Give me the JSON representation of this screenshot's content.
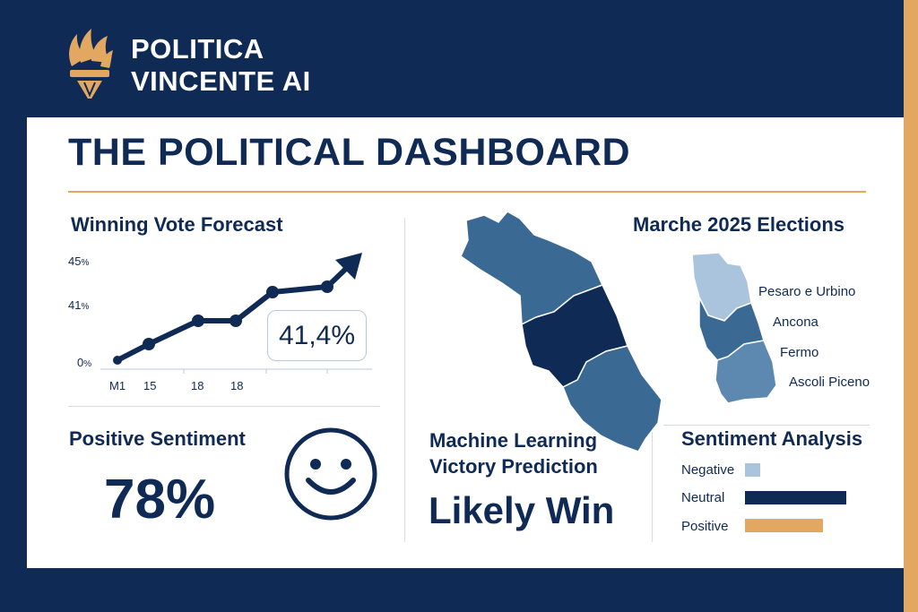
{
  "brand": {
    "line1": "POLITICA",
    "line2": "VINCENTE AI"
  },
  "dashboard": {
    "title": "THE POLITICAL DASHBOARD"
  },
  "forecast": {
    "title": "Winning Vote Forecast",
    "callout": "41,4%",
    "y_ticks": [
      {
        "value": "45",
        "unit": "%"
      },
      {
        "value": "41",
        "unit": "%"
      },
      {
        "value": "0",
        "unit": "%"
      }
    ],
    "x_ticks": [
      "M1",
      "15",
      "18",
      "18"
    ]
  },
  "map": {
    "title": "Marche 2025 Elections",
    "regions": [
      "Pesaro e Urbino",
      "Ancona",
      "Fermo",
      "Ascoli Piceno"
    ]
  },
  "sentiment": {
    "title": "Positive Sentiment",
    "value": "78%"
  },
  "prediction": {
    "title_line1": "Machine Learning",
    "title_line2": "Victory Prediction",
    "result": "Likely Win"
  },
  "analysis": {
    "title": "Sentiment Analysis",
    "items": [
      {
        "label": "Negative",
        "value": 0.15,
        "color": "#a9c4dc"
      },
      {
        "label": "Neutral",
        "value": 1.0,
        "color": "#0f2a55"
      },
      {
        "label": "Positive",
        "value": 0.77,
        "color": "#e2a861"
      }
    ]
  },
  "colors": {
    "navy": "#0f2a55",
    "gold": "#e2a861",
    "mid_blue": "#3a6a94",
    "light_blue": "#a9c4dc"
  },
  "icons": {
    "logo": "torch-icon",
    "sentiment": "smiley-face-icon",
    "trend": "arrow-up-right-icon"
  }
}
